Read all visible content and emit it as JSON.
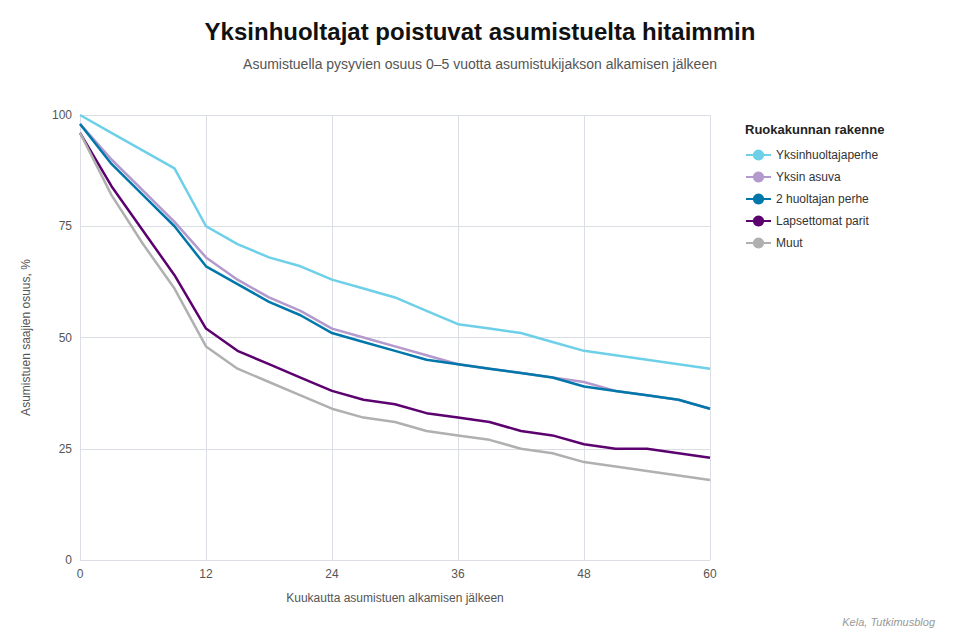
{
  "chart_data": {
    "type": "line",
    "title": "Yksinhuoltajat poistuvat asumistuelta hitaimmin",
    "subtitle": "Asumistuella pysyvien osuus 0–5 vuotta asumistukijakson alkamisen jälkeen",
    "xlabel": "Kuukautta asumistuen alkamisen jälkeen",
    "ylabel": "Asumistuen saajien osuus, %",
    "legend_title": "Ruokakunnan rakenne",
    "source": "Kela, Tutkimusblog",
    "x": [
      0,
      3,
      6,
      9,
      12,
      15,
      18,
      21,
      24,
      27,
      30,
      33,
      36,
      39,
      42,
      45,
      48,
      51,
      54,
      57,
      60
    ],
    "series": [
      {
        "name": "Yksinhuoltajaperhe",
        "color": "#6dd0e8",
        "values": [
          100,
          96,
          92,
          88,
          75,
          71,
          68,
          66,
          63,
          61,
          59,
          56,
          53,
          52,
          51,
          49,
          47,
          46,
          45,
          44,
          43
        ]
      },
      {
        "name": "Yksin asuva",
        "color": "#b399cc",
        "values": [
          98,
          90,
          83,
          76,
          68,
          63,
          59,
          56,
          52,
          50,
          48,
          46,
          44,
          43,
          42,
          41,
          40,
          38,
          37,
          36,
          34
        ]
      },
      {
        "name": "2 huoltajan perhe",
        "color": "#0077aa",
        "values": [
          98,
          89,
          82,
          75,
          66,
          62,
          58,
          55,
          51,
          49,
          47,
          45,
          44,
          43,
          42,
          41,
          39,
          38,
          37,
          36,
          34
        ]
      },
      {
        "name": "Lapsettomat parit",
        "color": "#5c0070",
        "values": [
          96,
          84,
          74,
          64,
          52,
          47,
          44,
          41,
          38,
          36,
          35,
          33,
          32,
          31,
          29,
          28,
          26,
          25,
          25,
          24,
          23
        ]
      },
      {
        "name": "Muut",
        "color": "#b0b0b0",
        "values": [
          96,
          82,
          71,
          61,
          48,
          43,
          40,
          37,
          34,
          32,
          31,
          29,
          28,
          27,
          25,
          24,
          22,
          21,
          20,
          19,
          18
        ]
      }
    ],
    "xlim": [
      0,
      60
    ],
    "ylim": [
      0,
      100
    ],
    "xticks": [
      0,
      12,
      24,
      36,
      48,
      60
    ],
    "yticks": [
      0,
      25,
      50,
      75,
      100
    ],
    "grid": true,
    "legend": "upper right"
  }
}
